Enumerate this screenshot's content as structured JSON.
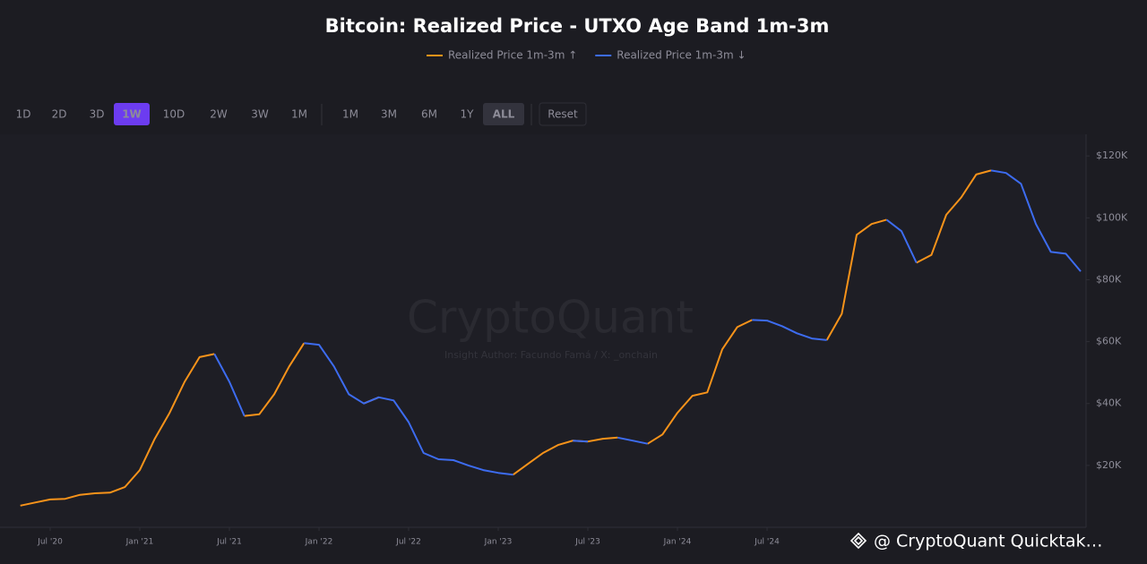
{
  "chart_data": {
    "type": "line",
    "title": "Bitcoin: Realized Price - UTXO Age Band 1m-3m",
    "range_buttons": [
      "1D",
      "2D",
      "3D",
      "1W",
      "10D",
      "2W",
      "3W",
      "1M"
    ],
    "active_range": 3,
    "period_buttons": [
      "1M",
      "3M",
      "6M",
      "1Y",
      "ALL"
    ],
    "active_period": 4,
    "reset_button": "Reset",
    "watermark": "CryptoQuant",
    "watermark_subtitle": "Insight Author: Facundo Famá / X: _onchain",
    "footer": "@ CryptoQuant Quicktak…",
    "x": [
      "2020-05",
      "2020-06",
      "2020-07",
      "2020-08",
      "2020-09",
      "2020-10",
      "2020-11",
      "2020-12",
      "2021-01",
      "2021-02",
      "2021-03",
      "2021-04",
      "2021-05",
      "2021-06",
      "2021-07",
      "2021-08",
      "2021-09",
      "2021-10",
      "2021-11",
      "2021-12",
      "2022-01",
      "2022-02",
      "2022-03",
      "2022-04",
      "2022-05",
      "2022-06",
      "2022-07",
      "2022-08",
      "2022-09",
      "2022-10",
      "2022-11",
      "2022-12",
      "2023-01",
      "2023-02",
      "2023-03",
      "2023-04",
      "2023-05",
      "2023-06",
      "2023-07",
      "2023-08",
      "2023-09",
      "2023-10",
      "2023-11",
      "2023-12",
      "2024-01",
      "2024-02",
      "2024-03",
      "2024-04",
      "2024-05",
      "2024-06",
      "2024-07",
      "2024-08",
      "2024-09",
      "2024-10",
      "2024-11",
      "2024-12",
      "2025-01",
      "2025-02",
      "2025-03",
      "2025-04",
      "2025-05",
      "2025-06",
      "2025-07",
      "2025-08",
      "2025-09",
      "2025-10",
      "2025-11",
      "2025-12",
      "2026-01",
      "2026-02",
      "2026-03",
      "2026-04"
    ],
    "series": [
      {
        "name": "Realized Price 1m-3m ↑",
        "color": "#f7931a",
        "values": [
          7000,
          8000,
          9000,
          9200,
          10500,
          11000,
          11200,
          13000,
          18500,
          28600,
          37000,
          47000,
          55000,
          56000,
          null,
          36000,
          36500,
          43000,
          52000,
          59500,
          null,
          null,
          null,
          40000,
          42000,
          null,
          null,
          null,
          null,
          null,
          null,
          null,
          null,
          17000,
          20500,
          24000,
          26600,
          28000,
          27700,
          28600,
          29000,
          null,
          27000,
          30000,
          37000,
          42500,
          43600,
          57500,
          64700,
          67000,
          null,
          null,
          null,
          null,
          60500,
          69000,
          94500,
          98000,
          99400,
          null,
          85500,
          88000,
          101000,
          106600,
          114000,
          115300,
          null,
          null,
          null,
          null,
          null,
          null
        ]
      },
      {
        "name": "Realized Price 1m-3m ↓",
        "color": "#3d6cf0",
        "values": [
          null,
          null,
          null,
          null,
          null,
          null,
          null,
          null,
          null,
          null,
          null,
          null,
          null,
          56000,
          47000,
          36000,
          null,
          null,
          null,
          59500,
          59000,
          52000,
          43000,
          40000,
          42000,
          41000,
          34000,
          24000,
          22000,
          21700,
          20000,
          18500,
          17600,
          17000,
          null,
          null,
          null,
          28000,
          27700,
          null,
          29000,
          28000,
          27000,
          null,
          null,
          null,
          null,
          null,
          null,
          67000,
          66800,
          65000,
          62700,
          61000,
          60500,
          null,
          null,
          null,
          99400,
          95700,
          85500,
          null,
          null,
          null,
          null,
          115300,
          114500,
          111000,
          98000,
          89000,
          88400,
          82700
        ]
      }
    ],
    "ylim": [
      0,
      127000
    ],
    "yticks": [
      {
        "value": 20000,
        "label": "$20K"
      },
      {
        "value": 40000,
        "label": "$40K"
      },
      {
        "value": 60000,
        "label": "$60K"
      },
      {
        "value": 80000,
        "label": "$80K"
      },
      {
        "value": 100000,
        "label": "$100K"
      },
      {
        "value": 120000,
        "label": "$120K"
      }
    ],
    "xticks": [
      {
        "value": "2020-07",
        "label": "Jul '20"
      },
      {
        "value": "2021-01",
        "label": "Jan '21"
      },
      {
        "value": "2021-07",
        "label": "Jul '21"
      },
      {
        "value": "2022-01",
        "label": "Jan '22"
      },
      {
        "value": "2022-07",
        "label": "Jul '22"
      },
      {
        "value": "2023-01",
        "label": "Jan '23"
      },
      {
        "value": "2023-07",
        "label": "Jul '23"
      },
      {
        "value": "2024-01",
        "label": "Jan '24"
      },
      {
        "value": "2024-07",
        "label": "Jul '24"
      }
    ],
    "grid": false
  }
}
